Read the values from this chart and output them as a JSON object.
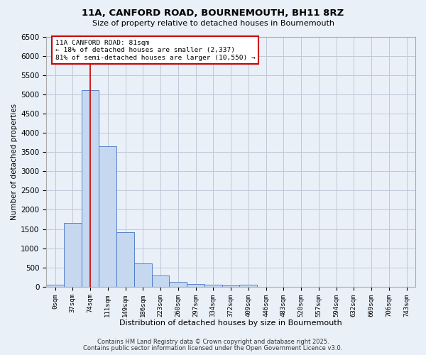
{
  "title1": "11A, CANFORD ROAD, BOURNEMOUTH, BH11 8RZ",
  "title2": "Size of property relative to detached houses in Bournemouth",
  "xlabel": "Distribution of detached houses by size in Bournemouth",
  "ylabel": "Number of detached properties",
  "bar_labels": [
    "0sqm",
    "37sqm",
    "74sqm",
    "111sqm",
    "149sqm",
    "186sqm",
    "223sqm",
    "260sqm",
    "297sqm",
    "334sqm",
    "372sqm",
    "409sqm",
    "446sqm",
    "483sqm",
    "520sqm",
    "557sqm",
    "594sqm",
    "632sqm",
    "669sqm",
    "706sqm",
    "743sqm"
  ],
  "bar_values": [
    60,
    1650,
    5100,
    3650,
    1420,
    600,
    300,
    130,
    80,
    50,
    40,
    60,
    0,
    0,
    0,
    0,
    0,
    0,
    0,
    0,
    0
  ],
  "bar_color": "#c5d8f0",
  "bar_edge_color": "#4472c4",
  "grid_color": "#c0c8d8",
  "background_color": "#eaf0f8",
  "vline_x": 2,
  "vline_color": "#cc0000",
  "annotation_line1": "11A CANFORD ROAD: 81sqm",
  "annotation_line2": "← 18% of detached houses are smaller (2,337)",
  "annotation_line3": "81% of semi-detached houses are larger (10,550) →",
  "annotation_box_color": "#ffffff",
  "annotation_box_edge": "#cc0000",
  "ylim": [
    0,
    6500
  ],
  "footnote1": "Contains HM Land Registry data © Crown copyright and database right 2025.",
  "footnote2": "Contains public sector information licensed under the Open Government Licence v3.0."
}
